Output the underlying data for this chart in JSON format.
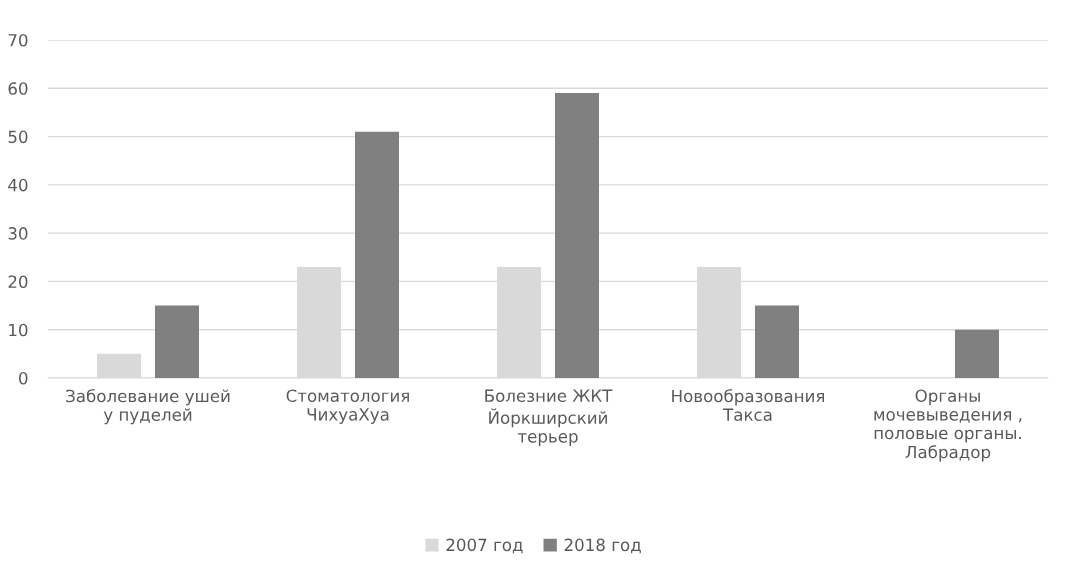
{
  "chart_data": {
    "type": "bar",
    "categories": [
      "Заболевание ушей\nу пуделей",
      "Стоматология\nЧихуаХуа",
      "Болезние ЖКТ\nЙоркширский\nтерьер",
      "Новообразования\nТакса",
      "Органы\nмочевыведения ,\nполовые органы.\nЛабрадор"
    ],
    "series": [
      {
        "name": "2007 год",
        "color": "#d9d9d9",
        "values": [
          5,
          23,
          23,
          23,
          null
        ]
      },
      {
        "name": "2018 год",
        "color": "#808080",
        "values": [
          15,
          51,
          59,
          15,
          10
        ]
      }
    ],
    "ylim": [
      0,
      70
    ],
    "yticks": [
      0,
      10,
      20,
      30,
      40,
      50,
      60,
      70
    ],
    "grid": "y",
    "legend": "bottom"
  }
}
